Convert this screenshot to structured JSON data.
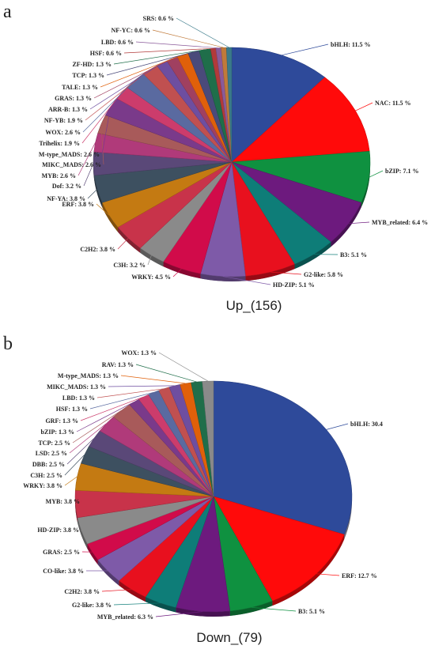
{
  "chart_data": [
    {
      "type": "pie",
      "panel": "a",
      "caption": "Up_(156)",
      "slices": [
        {
          "label": "bHLH: 11.5 %",
          "value": 11.5,
          "color": "#2e4a9a"
        },
        {
          "label": "NAC: 11.5 %",
          "value": 11.5,
          "color": "#ff0a0a"
        },
        {
          "label": "bZIP: 7.1 %",
          "value": 7.1,
          "color": "#0f9140"
        },
        {
          "label": "MYB_related: 6.4 %",
          "value": 6.4,
          "color": "#6d1a7e"
        },
        {
          "label": "B3: 5.1 %",
          "value": 5.1,
          "color": "#0e7d78"
        },
        {
          "label": "G2-like: 5.8 %",
          "value": 5.8,
          "color": "#e8101e"
        },
        {
          "label": "HD-ZIP: 5.1 %",
          "value": 5.1,
          "color": "#7e5aa8"
        },
        {
          "label": "WRKY: 4.5 %",
          "value": 4.5,
          "color": "#d10b4a"
        },
        {
          "label": "C3H: 3.2 %",
          "value": 3.2,
          "color": "#8a8a8a"
        },
        {
          "label": "C2H2: 3.8 %",
          "value": 3.8,
          "color": "#c8334a"
        },
        {
          "label": "ERF: 3.8 %",
          "value": 3.8,
          "color": "#c47a12"
        },
        {
          "label": "NF-YA: 3.8 %",
          "value": 3.8,
          "color": "#3d5060"
        },
        {
          "label": "Dof: 3.2 %",
          "value": 3.2,
          "color": "#5a4878"
        },
        {
          "label": "MYB: 2.6 %",
          "value": 2.6,
          "color": "#b03a7a"
        },
        {
          "label": "MIKC_MADS: 2.6 %",
          "value": 2.6,
          "color": "#a85a5a"
        },
        {
          "label": "M-type_MADS: 2.6 %",
          "value": 2.6,
          "color": "#7a3a8a"
        },
        {
          "label": "Trihelix: 1.9 %",
          "value": 1.9,
          "color": "#cc3c6c"
        },
        {
          "label": "WOX: 2.6 %",
          "value": 2.6,
          "color": "#5a6aa0"
        },
        {
          "label": "NF-YB: 1.9 %",
          "value": 1.9,
          "color": "#c05050"
        },
        {
          "label": "ARR-B: 1.3 %",
          "value": 1.3,
          "color": "#6e4ea0"
        },
        {
          "label": "GRAS: 1.3 %",
          "value": 1.3,
          "color": "#a04060"
        },
        {
          "label": "TALE: 1.3 %",
          "value": 1.3,
          "color": "#e0600a"
        },
        {
          "label": "TCP: 1.3 %",
          "value": 1.3,
          "color": "#4a4a7a"
        },
        {
          "label": "ZF-HD: 1.3 %",
          "value": 1.3,
          "color": "#1f6e4a"
        },
        {
          "label": "HSF: 0.6 %",
          "value": 0.6,
          "color": "#b23a3a"
        },
        {
          "label": "LBD: 0.6 %",
          "value": 0.6,
          "color": "#8a5a9a"
        },
        {
          "label": "NF-YC: 0.6 %",
          "value": 0.6,
          "color": "#c07a3a"
        },
        {
          "label": "SRS: 0.6 %",
          "value": 0.6,
          "color": "#3a7a8a"
        }
      ]
    },
    {
      "type": "pie",
      "panel": "b",
      "caption": "Down_(79)",
      "slices": [
        {
          "label": "bHLH: 30.4",
          "value": 30.4,
          "color": "#2e4a9a"
        },
        {
          "label": "ERF: 12.7 %",
          "value": 12.7,
          "color": "#ff0a0a"
        },
        {
          "label": "B3: 5.1 %",
          "value": 5.1,
          "color": "#0f9140"
        },
        {
          "label": "MYB_related: 6.3 %",
          "value": 6.3,
          "color": "#6d1a7e"
        },
        {
          "label": "G2-like: 3.8 %",
          "value": 3.8,
          "color": "#0e7d78"
        },
        {
          "label": "C2H2: 3.8 %",
          "value": 3.8,
          "color": "#e8101e"
        },
        {
          "label": "CO-like: 3.8 %",
          "value": 3.8,
          "color": "#7e5aa8"
        },
        {
          "label": "GRAS: 2.5 %",
          "value": 2.5,
          "color": "#d10b4a"
        },
        {
          "label": "HD-ZIP: 3.8 %",
          "value": 3.8,
          "color": "#8a8a8a"
        },
        {
          "label": "MYB: 3.8 %",
          "value": 3.8,
          "color": "#c8334a"
        },
        {
          "label": "WRKY: 3.8 %",
          "value": 3.8,
          "color": "#c47a12"
        },
        {
          "label": "C3H: 2.5 %",
          "value": 2.5,
          "color": "#3d5060"
        },
        {
          "label": "DBB: 2.5 %",
          "value": 2.5,
          "color": "#5a4878"
        },
        {
          "label": "LSD: 2.5 %",
          "value": 2.5,
          "color": "#b03a7a"
        },
        {
          "label": "TCP: 2.5 %",
          "value": 2.5,
          "color": "#a85a5a"
        },
        {
          "label": "bZIP: 1.3 %",
          "value": 1.3,
          "color": "#7a3a8a"
        },
        {
          "label": "GRF: 1.3 %",
          "value": 1.3,
          "color": "#cc3c6c"
        },
        {
          "label": "HSF: 1.3 %",
          "value": 1.3,
          "color": "#5a6aa0"
        },
        {
          "label": "LBD: 1.3 %",
          "value": 1.3,
          "color": "#c05050"
        },
        {
          "label": "MIKC_MADS: 1.3 %",
          "value": 1.3,
          "color": "#6e4ea0"
        },
        {
          "label": "M-type_MADS: 1.3 %",
          "value": 1.3,
          "color": "#e0600a"
        },
        {
          "label": "RAV: 1.3 %",
          "value": 1.3,
          "color": "#1f6e4a"
        },
        {
          "label": "WOX: 1.3 %",
          "value": 1.3,
          "color": "#8a8a8a"
        }
      ]
    }
  ]
}
